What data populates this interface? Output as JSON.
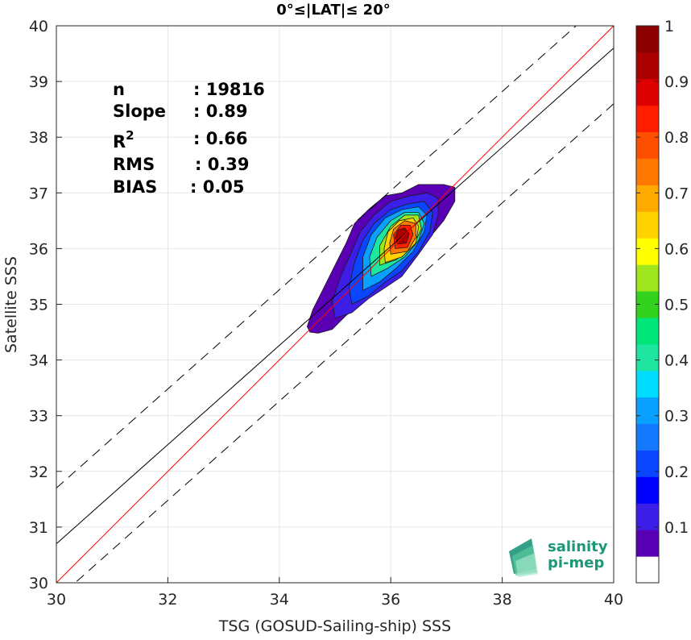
{
  "chart_data": {
    "type": "scatter",
    "title": "0°≤|LAT|≤ 20°",
    "xlabel": "TSG (GOSUD-Sailing-ship) SSS",
    "ylabel": "Satellite SSS",
    "xlim": [
      30,
      40
    ],
    "ylim": [
      30,
      40
    ],
    "xticks": [
      "30",
      "32",
      "34",
      "36",
      "38",
      "40"
    ],
    "yticks": [
      "30",
      "31",
      "32",
      "33",
      "34",
      "35",
      "36",
      "37",
      "38",
      "39",
      "40"
    ],
    "grid": true,
    "stats": [
      {
        "label": "n",
        "value": ": 19816"
      },
      {
        "label": "Slope",
        "value": ": 0.89"
      },
      {
        "label": "R",
        "sup": "2",
        "value": ": 0.66"
      },
      {
        "label": "RMS",
        "value": ": 0.39"
      },
      {
        "label": "BIAS",
        "value": ": 0.05"
      }
    ],
    "lines": {
      "identity": {
        "color": "#ff0000",
        "slope": 1,
        "intercept": 0
      },
      "fit": {
        "color": "#000000",
        "slope": 0.89,
        "intercept": 4.0
      },
      "fit_band_offset": 1.0
    },
    "density_contours": {
      "levels": [
        0.05,
        0.1,
        0.2,
        0.3,
        0.4,
        0.5,
        0.6,
        0.7,
        0.8,
        0.9
      ],
      "center": [
        36.2,
        36.2
      ],
      "polygons": [
        {
          "level": 0.05,
          "points": [
            [
              34.55,
              34.5
            ],
            [
              34.7,
              34.48
            ],
            [
              34.95,
              34.55
            ],
            [
              35.2,
              34.8
            ],
            [
              35.5,
              35.05
            ],
            [
              35.8,
              35.25
            ],
            [
              36.1,
              35.5
            ],
            [
              36.4,
              35.85
            ],
            [
              36.7,
              36.2
            ],
            [
              36.95,
              36.5
            ],
            [
              37.15,
              36.85
            ],
            [
              37.15,
              37.1
            ],
            [
              36.95,
              37.15
            ],
            [
              36.5,
              37.15
            ],
            [
              36.2,
              37.0
            ],
            [
              35.9,
              36.95
            ],
            [
              35.6,
              36.7
            ],
            [
              35.35,
              36.45
            ],
            [
              35.2,
              36.1
            ],
            [
              35.0,
              35.7
            ],
            [
              34.8,
              35.3
            ],
            [
              34.6,
              34.9
            ],
            [
              34.5,
              34.6
            ]
          ]
        },
        {
          "level": 0.1,
          "points": [
            [
              35.0,
              34.75
            ],
            [
              35.3,
              34.85
            ],
            [
              35.6,
              35.1
            ],
            [
              35.9,
              35.3
            ],
            [
              36.2,
              35.5
            ],
            [
              36.5,
              35.9
            ],
            [
              36.75,
              36.25
            ],
            [
              36.85,
              36.6
            ],
            [
              36.85,
              36.9
            ],
            [
              36.65,
              37.0
            ],
            [
              36.35,
              36.95
            ],
            [
              36.0,
              36.85
            ],
            [
              35.7,
              36.6
            ],
            [
              35.45,
              36.3
            ],
            [
              35.3,
              35.95
            ],
            [
              35.1,
              35.5
            ],
            [
              34.95,
              35.05
            ]
          ]
        },
        {
          "level": 0.2,
          "points": [
            [
              35.3,
              35.0
            ],
            [
              35.6,
              35.15
            ],
            [
              35.9,
              35.4
            ],
            [
              36.2,
              35.6
            ],
            [
              36.5,
              35.95
            ],
            [
              36.7,
              36.3
            ],
            [
              36.75,
              36.65
            ],
            [
              36.6,
              36.85
            ],
            [
              36.3,
              36.8
            ],
            [
              36.0,
              36.7
            ],
            [
              35.7,
              36.45
            ],
            [
              35.5,
              36.15
            ],
            [
              35.35,
              35.75
            ],
            [
              35.25,
              35.3
            ]
          ]
        },
        {
          "level": 0.3,
          "points": [
            [
              35.5,
              35.25
            ],
            [
              35.8,
              35.4
            ],
            [
              36.1,
              35.65
            ],
            [
              36.4,
              35.95
            ],
            [
              36.6,
              36.3
            ],
            [
              36.65,
              36.6
            ],
            [
              36.5,
              36.75
            ],
            [
              36.2,
              36.7
            ],
            [
              35.9,
              36.55
            ],
            [
              35.65,
              36.25
            ],
            [
              35.5,
              35.85
            ]
          ]
        },
        {
          "level": 0.4,
          "points": [
            [
              35.65,
              35.5
            ],
            [
              35.95,
              35.65
            ],
            [
              36.25,
              35.85
            ],
            [
              36.5,
              36.15
            ],
            [
              36.6,
              36.45
            ],
            [
              36.5,
              36.65
            ],
            [
              36.25,
              36.65
            ],
            [
              36.0,
              36.5
            ],
            [
              35.75,
              36.2
            ],
            [
              35.62,
              35.85
            ]
          ]
        },
        {
          "level": 0.5,
          "points": [
            [
              35.8,
              35.7
            ],
            [
              36.1,
              35.8
            ],
            [
              36.4,
              36.05
            ],
            [
              36.55,
              36.35
            ],
            [
              36.5,
              36.6
            ],
            [
              36.25,
              36.6
            ],
            [
              36.0,
              36.4
            ],
            [
              35.8,
              36.05
            ]
          ]
        },
        {
          "level": 0.6,
          "points": [
            [
              35.9,
              35.75
            ],
            [
              36.2,
              35.85
            ],
            [
              36.45,
              36.1
            ],
            [
              36.5,
              36.4
            ],
            [
              36.4,
              36.55
            ],
            [
              36.15,
              36.5
            ],
            [
              35.95,
              36.3
            ],
            [
              35.88,
              36.0
            ]
          ]
        },
        {
          "level": 0.7,
          "points": [
            [
              36.0,
              35.9
            ],
            [
              36.3,
              35.95
            ],
            [
              36.45,
              36.2
            ],
            [
              36.45,
              36.45
            ],
            [
              36.25,
              36.5
            ],
            [
              36.05,
              36.35
            ],
            [
              35.98,
              36.1
            ]
          ]
        },
        {
          "level": 0.8,
          "points": [
            [
              36.08,
              36.0
            ],
            [
              36.3,
              36.02
            ],
            [
              36.4,
              36.25
            ],
            [
              36.35,
              36.42
            ],
            [
              36.18,
              36.42
            ],
            [
              36.05,
              36.25
            ]
          ]
        },
        {
          "level": 0.9,
          "points": [
            [
              36.12,
              36.08
            ],
            [
              36.28,
              36.1
            ],
            [
              36.33,
              36.27
            ],
            [
              36.25,
              36.37
            ],
            [
              36.13,
              36.33
            ],
            [
              36.08,
              36.2
            ]
          ]
        }
      ]
    },
    "colorbar": {
      "ticks": [
        "0.1",
        "0.2",
        "0.3",
        "0.4",
        "0.5",
        "0.6",
        "0.7",
        "0.8",
        "0.9",
        "1"
      ],
      "tick_values": [
        0.1,
        0.2,
        0.3,
        0.4,
        0.5,
        0.6,
        0.7,
        0.8,
        0.9,
        1.0
      ],
      "range": [
        0,
        1
      ],
      "colors": [
        "#ffffff",
        "#5a00b4",
        "#3c1ee6",
        "#0000ff",
        "#0a46ff",
        "#1478ff",
        "#0aa0ff",
        "#00dcff",
        "#1ee6a0",
        "#00e678",
        "#32d21e",
        "#a0e61e",
        "#ffff00",
        "#ffd200",
        "#ffaa00",
        "#ff7800",
        "#ff5000",
        "#ff1e00",
        "#dc0000",
        "#aa0000",
        "#8c0000"
      ]
    }
  },
  "logo": {
    "line1": "salinity",
    "line2": "pi-mep",
    "color": "#1e9678"
  }
}
